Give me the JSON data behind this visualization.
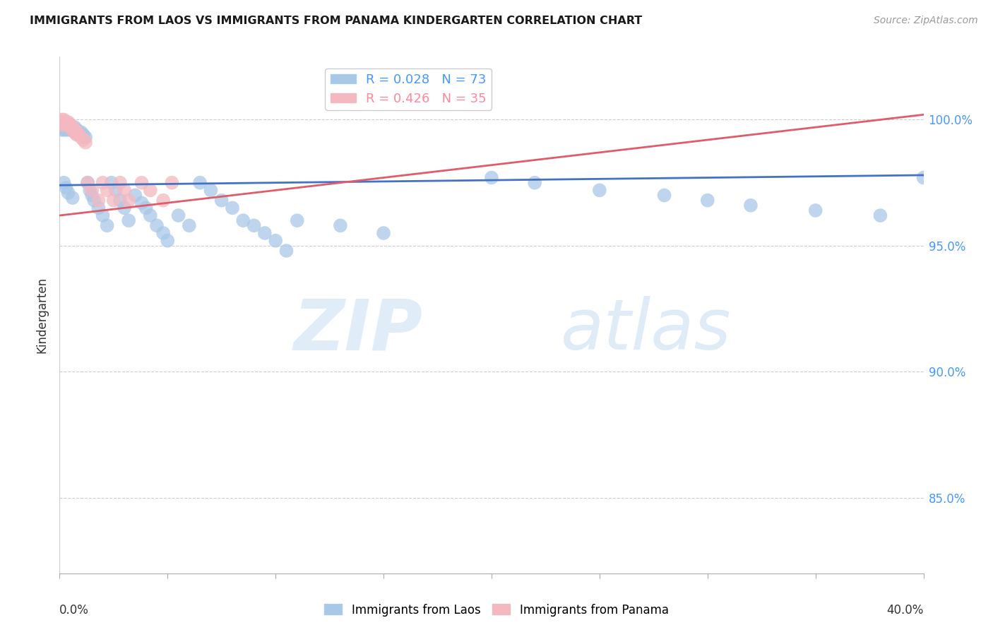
{
  "title": "IMMIGRANTS FROM LAOS VS IMMIGRANTS FROM PANAMA KINDERGARTEN CORRELATION CHART",
  "source": "Source: ZipAtlas.com",
  "ylabel": "Kindergarten",
  "ytick_values": [
    0.85,
    0.9,
    0.95,
    1.0
  ],
  "laos_color": "#a8c8e8",
  "panama_color": "#f4b8c0",
  "laos_line_color": "#4472c4",
  "panama_line_color": "#e05c6a",
  "watermark_zip": "ZIP",
  "watermark_atlas": "atlas",
  "laos_x": [
    0.001,
    0.001,
    0.001,
    0.001,
    0.002,
    0.002,
    0.002,
    0.002,
    0.003,
    0.003,
    0.003,
    0.004,
    0.004,
    0.005,
    0.005,
    0.005,
    0.006,
    0.006,
    0.007,
    0.007,
    0.008,
    0.008,
    0.009,
    0.01,
    0.01,
    0.011,
    0.012,
    0.013,
    0.014,
    0.015,
    0.016,
    0.018,
    0.02,
    0.022,
    0.024,
    0.026,
    0.028,
    0.03,
    0.032,
    0.035,
    0.038,
    0.04,
    0.042,
    0.045,
    0.048,
    0.05,
    0.055,
    0.06,
    0.065,
    0.07,
    0.075,
    0.08,
    0.085,
    0.09,
    0.095,
    0.1,
    0.105,
    0.11,
    0.13,
    0.15,
    0.2,
    0.22,
    0.25,
    0.28,
    0.3,
    0.32,
    0.35,
    0.38,
    0.4,
    0.002,
    0.003,
    0.004,
    0.006
  ],
  "laos_y": [
    0.999,
    0.998,
    0.997,
    0.996,
    0.999,
    0.998,
    0.997,
    0.996,
    0.998,
    0.997,
    0.996,
    0.997,
    0.996,
    0.998,
    0.997,
    0.996,
    0.997,
    0.996,
    0.997,
    0.995,
    0.996,
    0.995,
    0.995,
    0.995,
    0.994,
    0.994,
    0.993,
    0.975,
    0.972,
    0.97,
    0.968,
    0.965,
    0.962,
    0.958,
    0.975,
    0.972,
    0.968,
    0.965,
    0.96,
    0.97,
    0.967,
    0.965,
    0.962,
    0.958,
    0.955,
    0.952,
    0.962,
    0.958,
    0.975,
    0.972,
    0.968,
    0.965,
    0.96,
    0.958,
    0.955,
    0.952,
    0.948,
    0.96,
    0.958,
    0.955,
    0.977,
    0.975,
    0.972,
    0.97,
    0.968,
    0.966,
    0.964,
    0.962,
    0.977,
    0.975,
    0.973,
    0.971,
    0.969
  ],
  "panama_x": [
    0.001,
    0.001,
    0.001,
    0.002,
    0.002,
    0.002,
    0.003,
    0.003,
    0.004,
    0.004,
    0.005,
    0.005,
    0.006,
    0.006,
    0.007,
    0.007,
    0.008,
    0.008,
    0.009,
    0.01,
    0.011,
    0.012,
    0.013,
    0.015,
    0.018,
    0.02,
    0.022,
    0.025,
    0.028,
    0.03,
    0.032,
    0.038,
    0.042,
    0.048,
    0.052
  ],
  "panama_y": [
    1.0,
    0.999,
    0.998,
    1.0,
    0.999,
    0.998,
    0.999,
    0.998,
    0.999,
    0.998,
    0.998,
    0.997,
    0.997,
    0.996,
    0.996,
    0.995,
    0.995,
    0.994,
    0.994,
    0.993,
    0.992,
    0.991,
    0.975,
    0.972,
    0.968,
    0.975,
    0.972,
    0.968,
    0.975,
    0.972,
    0.968,
    0.975,
    0.972,
    0.968,
    0.975
  ],
  "laos_trend_x": [
    0.0,
    0.4
  ],
  "laos_trend_y": [
    0.974,
    0.978
  ],
  "panama_trend_x": [
    0.0,
    0.4
  ],
  "panama_trend_y": [
    0.962,
    1.002
  ],
  "xlim": [
    0.0,
    0.4
  ],
  "ylim": [
    0.82,
    1.025
  ]
}
